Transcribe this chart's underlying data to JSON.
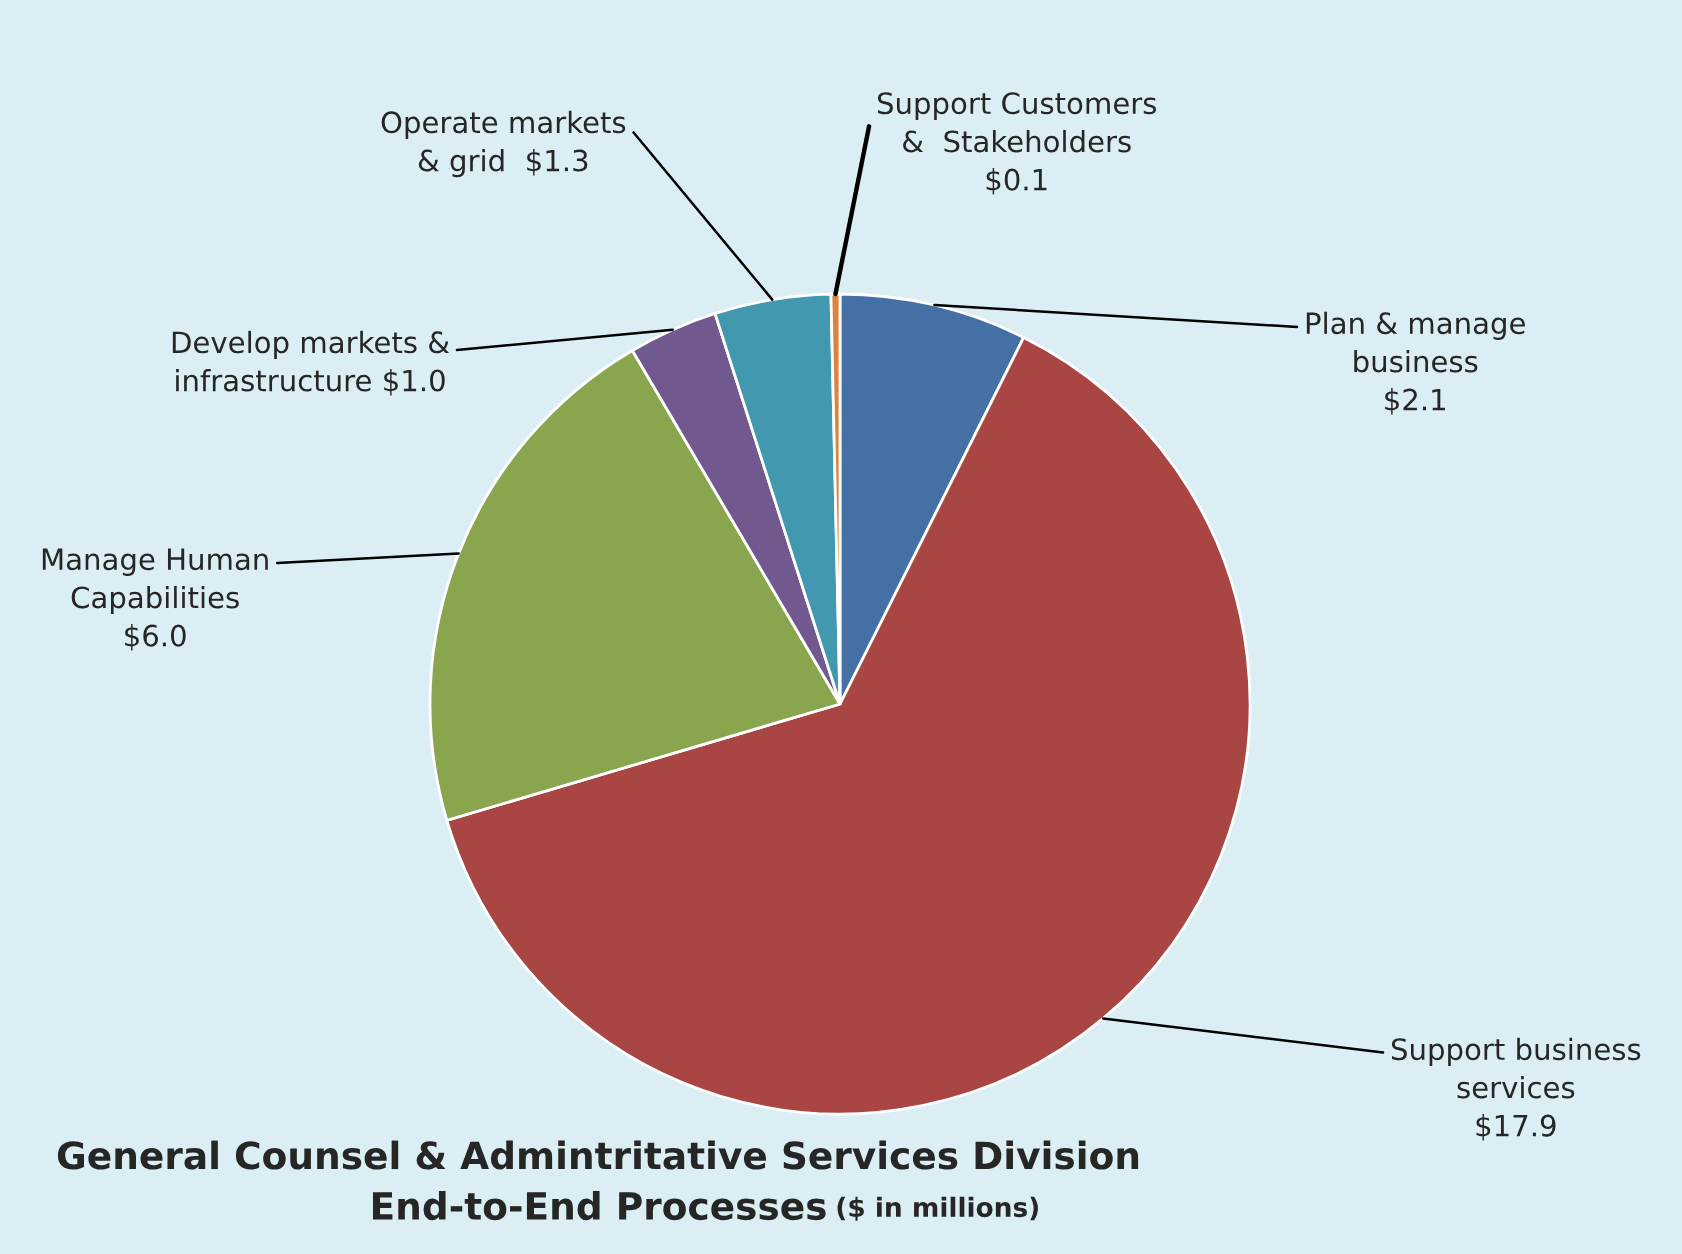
{
  "chart_data": {
    "type": "pie",
    "title": "General Counsel & Admintritative Services Division\nEnd-to-End Processes",
    "subtitle": "($ in millions)",
    "categories": [
      "Plan & manage\nbusiness\n$2.1",
      "Support business\nservices\n$17.9",
      "Manage Human\nCapabilities\n$6.0",
      "Develop markets &\ninfrastructure $1.0",
      "Operate markets\n& grid  $1.3",
      "Support Customers\n&  Stakeholders\n$0.1"
    ],
    "values": [
      2.1,
      17.9,
      6.0,
      1.0,
      1.3,
      0.1
    ],
    "colors": [
      "#4470a6",
      "#a94644",
      "#89a54e",
      "#71598f",
      "#4298af",
      "#db843d"
    ],
    "legend": false
  }
}
